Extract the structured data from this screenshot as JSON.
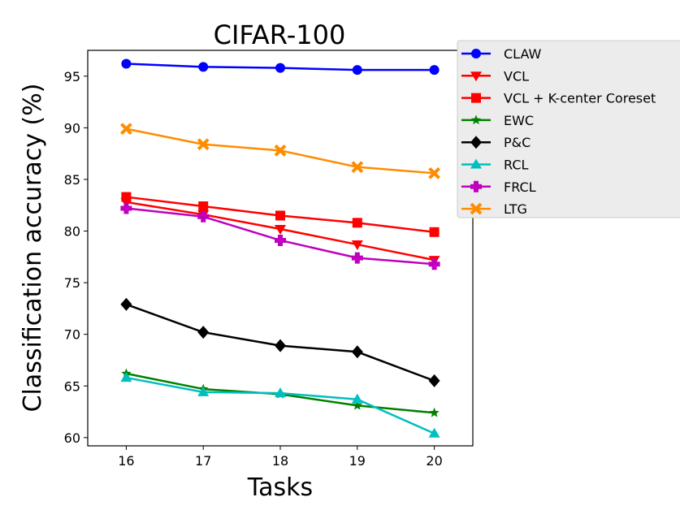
{
  "chart_data": {
    "type": "line",
    "title": "CIFAR-100",
    "xlabel": "Tasks",
    "ylabel": "Classification accuracy (%)",
    "x": [
      16,
      17,
      18,
      19,
      20
    ],
    "xticks": [
      "16",
      "17",
      "18",
      "19",
      "20"
    ],
    "xlim": [
      15.5,
      20.5
    ],
    "yticks": [
      "60",
      "65",
      "70",
      "75",
      "80",
      "85",
      "90",
      "95"
    ],
    "ytick_values": [
      60,
      65,
      70,
      75,
      80,
      85,
      90,
      95
    ],
    "ylim": [
      59.2,
      97.5
    ],
    "grid": false,
    "legend_position": "top-right, outside plot",
    "series": [
      {
        "name": "CLAW",
        "color": "#0000ff",
        "marker": "circle",
        "values": [
          96.2,
          95.9,
          95.8,
          95.6,
          95.6
        ]
      },
      {
        "name": "VCL",
        "color": "#ff0000",
        "marker": "triangle-down",
        "values": [
          82.8,
          81.6,
          80.2,
          78.7,
          77.2
        ]
      },
      {
        "name": "VCL + K-center Coreset",
        "color": "#ff0000",
        "marker": "square",
        "values": [
          83.3,
          82.4,
          81.5,
          80.8,
          79.9
        ]
      },
      {
        "name": "EWC",
        "color": "#008000",
        "marker": "star",
        "values": [
          66.2,
          64.7,
          64.2,
          63.1,
          62.4
        ]
      },
      {
        "name": "P&C",
        "color": "#000000",
        "marker": "diamond",
        "values": [
          72.9,
          70.2,
          68.9,
          68.3,
          65.5
        ]
      },
      {
        "name": "RCL",
        "color": "#00bfbf",
        "marker": "triangle-up",
        "values": [
          65.8,
          64.4,
          64.3,
          63.7,
          60.4
        ]
      },
      {
        "name": "FRCL",
        "color": "#bf00bf",
        "marker": "plus",
        "values": [
          82.2,
          81.4,
          79.1,
          77.4,
          76.8
        ]
      },
      {
        "name": "LTG",
        "color": "#ff8c00",
        "marker": "x",
        "values": [
          89.9,
          88.4,
          87.8,
          86.2,
          85.6
        ]
      }
    ]
  }
}
